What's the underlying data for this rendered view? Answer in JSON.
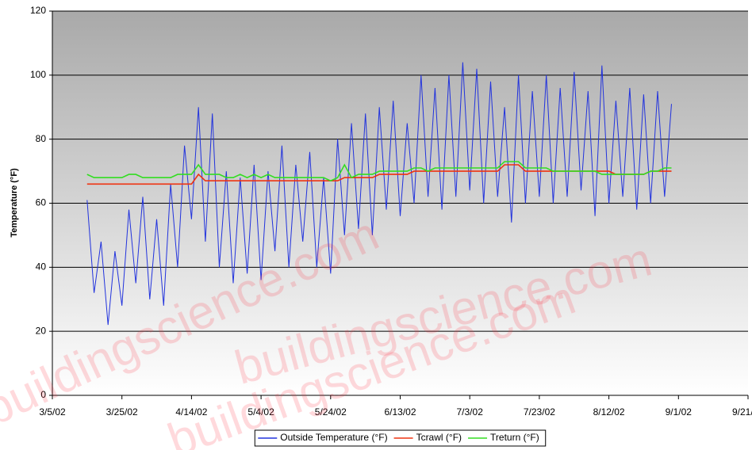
{
  "chart_data": {
    "type": "line",
    "y_label": "Temperature (°F)",
    "watermark": "buildingscience.com",
    "x": [
      "3/15/02",
      "3/17/02",
      "3/19/02",
      "3/21/02",
      "3/23/02",
      "3/25/02",
      "3/27/02",
      "3/29/02",
      "3/31/02",
      "4/2/02",
      "4/4/02",
      "4/6/02",
      "4/8/02",
      "4/10/02",
      "4/12/02",
      "4/14/02",
      "4/16/02",
      "4/18/02",
      "4/20/02",
      "4/22/02",
      "4/24/02",
      "4/26/02",
      "4/28/02",
      "4/30/02",
      "5/2/02",
      "5/4/02",
      "5/6/02",
      "5/8/02",
      "5/10/02",
      "5/12/02",
      "5/14/02",
      "5/16/02",
      "5/18/02",
      "5/20/02",
      "5/22/02",
      "5/24/02",
      "5/26/02",
      "5/28/02",
      "5/30/02",
      "6/1/02",
      "6/3/02",
      "6/5/02",
      "6/7/02",
      "6/9/02",
      "6/11/02",
      "6/13/02",
      "6/15/02",
      "6/17/02",
      "6/19/02",
      "6/21/02",
      "6/23/02",
      "6/25/02",
      "6/27/02",
      "6/29/02",
      "7/1/02",
      "7/3/02",
      "7/5/02",
      "7/7/02",
      "7/9/02",
      "7/11/02",
      "7/13/02",
      "7/15/02",
      "7/17/02",
      "7/19/02",
      "7/21/02",
      "7/23/02",
      "7/25/02",
      "7/27/02",
      "7/29/02",
      "7/31/02",
      "8/2/02",
      "8/4/02",
      "8/6/02",
      "8/8/02",
      "8/10/02",
      "8/12/02",
      "8/14/02",
      "8/16/02",
      "8/18/02",
      "8/20/02",
      "8/22/02",
      "8/24/02",
      "8/26/02",
      "8/28/02",
      "8/30/02"
    ],
    "series": [
      {
        "name": "Outside Temperature (°F)",
        "color": "#2233dd",
        "values": [
          61,
          32,
          48,
          22,
          45,
          28,
          58,
          35,
          62,
          30,
          55,
          28,
          66,
          40,
          78,
          55,
          90,
          48,
          88,
          40,
          70,
          35,
          68,
          38,
          72,
          36,
          70,
          45,
          78,
          40,
          72,
          48,
          76,
          40,
          68,
          38,
          80,
          50,
          85,
          52,
          88,
          50,
          90,
          58,
          92,
          56,
          85,
          60,
          100,
          62,
          96,
          58,
          100,
          62,
          104,
          64,
          102,
          60,
          98,
          62,
          90,
          54,
          100,
          60,
          95,
          62,
          100,
          60,
          96,
          62,
          101,
          64,
          95,
          56,
          103,
          60,
          92,
          62,
          96,
          58,
          94,
          60,
          95,
          62,
          91
        ]
      },
      {
        "name": "Tcrawl (°F)",
        "color": "#ee3311",
        "values": [
          66,
          66,
          66,
          66,
          66,
          66,
          66,
          66,
          66,
          66,
          66,
          66,
          66,
          66,
          66,
          66,
          69,
          67,
          67,
          67,
          67,
          67,
          67,
          67,
          67,
          67,
          67,
          67,
          67,
          67,
          67,
          67,
          67,
          67,
          67,
          67,
          67,
          68,
          68,
          68,
          68,
          68,
          69,
          69,
          69,
          69,
          69,
          70,
          70,
          70,
          70,
          70,
          70,
          70,
          70,
          70,
          70,
          70,
          70,
          70,
          72,
          72,
          72,
          70,
          70,
          70,
          70,
          70,
          70,
          70,
          70,
          70,
          70,
          70,
          70,
          70,
          69,
          69,
          69,
          69,
          69,
          70,
          70,
          70,
          70
        ]
      },
      {
        "name": "Treturn (°F)",
        "color": "#33dd22",
        "values": [
          69,
          68,
          68,
          68,
          68,
          68,
          69,
          69,
          68,
          68,
          68,
          68,
          68,
          69,
          69,
          69,
          72,
          69,
          69,
          69,
          68,
          68,
          69,
          68,
          69,
          68,
          69,
          68,
          68,
          68,
          68,
          68,
          68,
          68,
          68,
          67,
          68,
          72,
          68,
          69,
          69,
          69,
          70,
          70,
          70,
          70,
          70,
          71,
          71,
          70,
          71,
          71,
          71,
          71,
          71,
          71,
          71,
          71,
          71,
          71,
          73,
          73,
          73,
          71,
          71,
          71,
          71,
          70,
          70,
          70,
          70,
          70,
          70,
          70,
          69,
          69,
          69,
          69,
          69,
          69,
          69,
          70,
          70,
          71,
          71
        ]
      }
    ],
    "xlim": [
      "3/5/02",
      "9/21/02"
    ],
    "xticks": [
      "3/5/02",
      "3/25/02",
      "4/14/02",
      "5/4/02",
      "5/24/02",
      "6/13/02",
      "7/3/02",
      "7/23/02",
      "8/12/02",
      "9/1/02",
      "9/21/02"
    ],
    "ylim": [
      0,
      120
    ],
    "yticks": [
      0,
      20,
      40,
      60,
      80,
      100,
      120
    ],
    "grid": true,
    "legend": "bottom"
  }
}
